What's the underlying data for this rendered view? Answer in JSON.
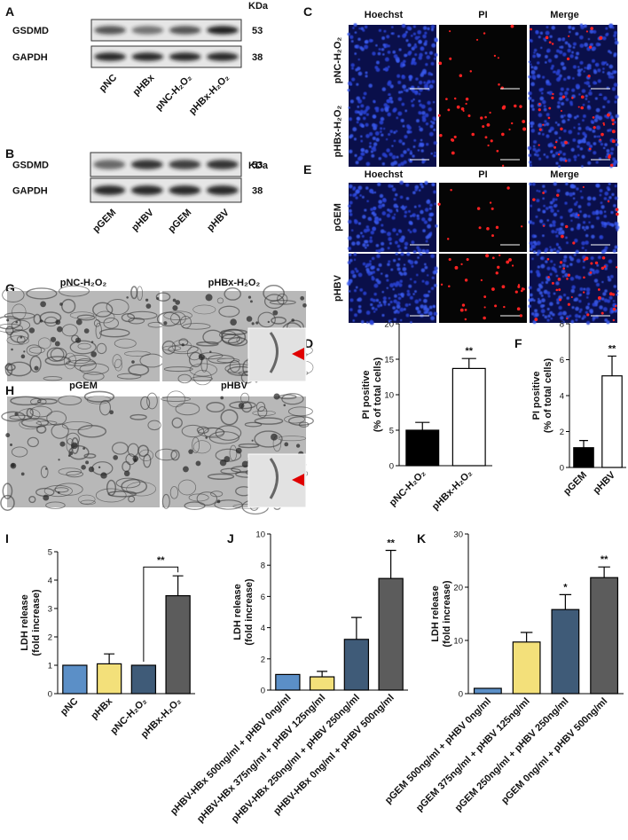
{
  "panels": [
    "A",
    "B",
    "C",
    "D",
    "E",
    "F",
    "G",
    "H",
    "I",
    "J",
    "K"
  ],
  "blot_A": {
    "unit": "KDa",
    "rows": [
      {
        "protein": "GSDMD",
        "size": 53
      },
      {
        "protein": "GAPDH",
        "size": 38
      }
    ],
    "lanes": [
      "pNC",
      "pHBx",
      "pNC-H₂O₂",
      "pHBx-H₂O₂"
    ]
  },
  "blot_B": {
    "unit": "KDa",
    "rows": [
      {
        "protein": "GSDMD",
        "size": 53
      },
      {
        "protein": "GAPDH",
        "size": 38
      }
    ],
    "lanes": [
      "pGEM",
      "pHBV",
      "pGEM",
      "pHBV"
    ]
  },
  "imaging_C": {
    "columns": [
      "Hoechst",
      "PI",
      "Merge"
    ],
    "rows": [
      "pNC-H₂O₂",
      "pHBx-H₂O₂"
    ]
  },
  "imaging_E": {
    "columns": [
      "Hoechst",
      "PI",
      "Merge"
    ],
    "rows": [
      "pGEM",
      "pHBV"
    ]
  },
  "em_G": {
    "titles": [
      "pNC-H₂O₂",
      "pHBx-H₂O₂"
    ]
  },
  "em_H": {
    "titles": [
      "pGEM",
      "pHBV"
    ]
  },
  "chart_data": [
    {
      "type": "bar",
      "y_label": [
        "PI positive",
        "(% of total cells)"
      ],
      "categories": [
        "pNC-H₂O₂",
        "pHBx-H₂O₂"
      ],
      "values": [
        5,
        13.7
      ],
      "errors": [
        1.1,
        1.4
      ],
      "colors": [
        "#000000",
        "#ffffff"
      ],
      "significance": [
        null,
        "**"
      ],
      "ylim": [
        0,
        20
      ],
      "yticks": [
        0,
        5,
        10,
        15,
        20
      ]
    },
    {
      "type": "bar",
      "y_label": [
        "PI positive",
        "(% of total cells)"
      ],
      "categories": [
        "pGEM",
        "pHBV"
      ],
      "values": [
        1.1,
        5.1
      ],
      "errors": [
        0.4,
        1.1
      ],
      "colors": [
        "#000000",
        "#ffffff"
      ],
      "significance": [
        null,
        "**"
      ],
      "ylim": [
        0,
        8
      ],
      "yticks": [
        0,
        2,
        4,
        6,
        8
      ]
    },
    {
      "type": "bar",
      "y_label": [
        "LDH release",
        "(fold increase)"
      ],
      "categories": [
        "pNC",
        "pHBx",
        "pNC-H₂O₂",
        "pHBx-H₂O₂"
      ],
      "values": [
        1,
        1.05,
        1,
        3.45
      ],
      "errors": [
        null,
        0.35,
        null,
        0.7
      ],
      "colors": [
        "#5b8fc7",
        "#f3e07a",
        "#3f5b78",
        "#5c5c5c"
      ],
      "significance": [
        null,
        null,
        null,
        null
      ],
      "comparisons": [
        {
          "between": [
            "pNC-H₂O₂",
            "pHBx-H₂O₂"
          ],
          "label": "**"
        }
      ],
      "ylim": [
        0,
        5
      ],
      "yticks": [
        0,
        1,
        2,
        3,
        4,
        5
      ]
    },
    {
      "type": "bar",
      "y_label": [
        "LDH release",
        "(fold increase)"
      ],
      "categories": [
        "pHBV-HBx 500ng/ml + pHBV 0ng/ml",
        "pHBV-HBx 375ng/ml + pHBV 125ng/ml",
        "pHBV-HBx 250ng/ml + pHBV 250ng/ml",
        "pHBV-HBx 0ng/ml + pHBV 500ng/ml"
      ],
      "values": [
        1,
        0.85,
        3.25,
        7.15
      ],
      "errors": [
        null,
        0.35,
        1.4,
        1.8
      ],
      "colors": [
        "#5b8fc7",
        "#f3e07a",
        "#3f5b78",
        "#5c5c5c"
      ],
      "significance": [
        null,
        null,
        null,
        "**"
      ],
      "ylim": [
        0,
        10
      ],
      "yticks": [
        0,
        2,
        4,
        6,
        8,
        10
      ]
    },
    {
      "type": "bar",
      "y_label": [
        "LDH release",
        "(fold increase)"
      ],
      "categories": [
        "pGEM 500ng/ml + pHBV 0ng/ml",
        "pGEM 375ng/ml + pHBV 125ng/ml",
        "pGEM 250ng/ml + pHBV 250ng/ml",
        "pGEM 0ng/ml + pHBV 500ng/ml"
      ],
      "values": [
        1,
        9.7,
        15.8,
        21.8
      ],
      "errors": [
        null,
        1.8,
        2.8,
        2.0
      ],
      "colors": [
        "#5b8fc7",
        "#f3e07a",
        "#3f5b78",
        "#5c5c5c"
      ],
      "significance": [
        null,
        null,
        "*",
        "**"
      ],
      "ylim": [
        0,
        30
      ],
      "yticks": [
        0,
        10,
        20,
        30
      ]
    }
  ]
}
